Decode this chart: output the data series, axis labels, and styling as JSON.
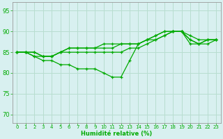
{
  "background_color": "#d8f0f0",
  "grid_color": "#b8ddd0",
  "line_color": "#00aa00",
  "marker_color": "#00aa00",
  "xlabel": "Humidité relative (%)",
  "xlabel_color": "#00aa00",
  "tick_color": "#00aa00",
  "ylim": [
    68,
    97
  ],
  "xlim": [
    -0.5,
    23.5
  ],
  "yticks": [
    70,
    75,
    80,
    85,
    90,
    95
  ],
  "xticks": [
    0,
    1,
    2,
    3,
    4,
    5,
    6,
    7,
    8,
    9,
    10,
    11,
    12,
    13,
    14,
    15,
    16,
    17,
    18,
    19,
    20,
    21,
    22,
    23
  ],
  "series": [
    [
      85,
      85,
      84,
      83,
      83,
      82,
      82,
      81,
      81,
      81,
      80,
      79,
      79,
      83,
      87,
      88,
      89,
      90,
      90,
      90,
      87,
      87,
      87,
      88
    ],
    [
      85,
      85,
      84,
      84,
      84,
      85,
      85,
      85,
      85,
      85,
      85,
      85,
      85,
      86,
      86,
      87,
      88,
      89,
      90,
      90,
      88,
      87,
      88,
      88
    ],
    [
      85,
      85,
      85,
      84,
      84,
      85,
      86,
      86,
      86,
      86,
      86,
      86,
      87,
      87,
      87,
      88,
      88,
      89,
      90,
      90,
      89,
      88,
      88,
      88
    ],
    [
      85,
      85,
      85,
      84,
      84,
      85,
      86,
      86,
      86,
      86,
      87,
      87,
      87,
      87,
      87,
      88,
      89,
      90,
      90,
      90,
      88,
      87,
      88,
      88
    ]
  ]
}
